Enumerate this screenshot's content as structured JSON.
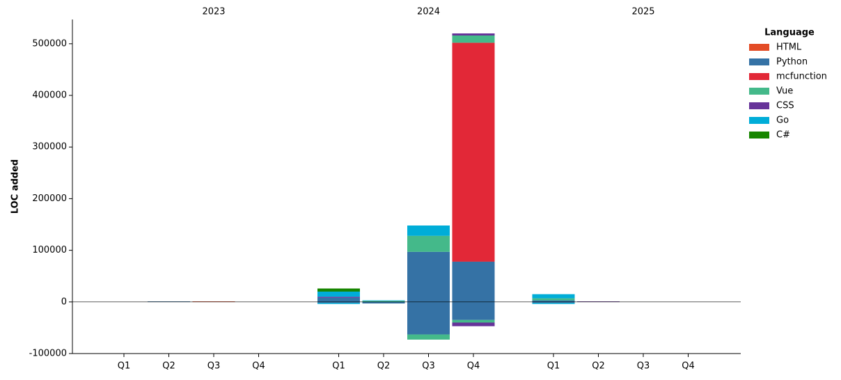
{
  "chart_data": {
    "type": "bar",
    "stacked": true,
    "y_label": "LOC added",
    "groups": [
      "2023",
      "2024",
      "2025"
    ],
    "categories": [
      "Q1",
      "Q2",
      "Q3",
      "Q4",
      "Q1",
      "Q2",
      "Q3",
      "Q4",
      "Q1",
      "Q2",
      "Q3",
      "Q4"
    ],
    "legend_title": "Language",
    "legend": "upper right",
    "series": [
      {
        "name": "HTML",
        "color": "#e34c26",
        "values": [
          0,
          0,
          1000,
          0,
          0,
          0,
          0,
          0,
          0,
          0,
          0,
          0
        ]
      },
      {
        "name": "Python",
        "color": "#3572a5",
        "values": [
          0,
          1000,
          0,
          0,
          8000,
          -3000,
          97000,
          78000,
          3000,
          0,
          0,
          0
        ]
      },
      {
        "name": "mcfunction",
        "color": "#e22837",
        "values": [
          0,
          0,
          0,
          0,
          0,
          0,
          0,
          424000,
          0,
          0,
          0,
          0
        ]
      },
      {
        "name": "Vue",
        "color": "#44b98a",
        "values": [
          0,
          0,
          0,
          0,
          0,
          2000,
          31000,
          14000,
          4000,
          0,
          0,
          0
        ]
      },
      {
        "name": "CSS",
        "color": "#663399",
        "values": [
          0,
          0,
          0,
          0,
          2000,
          0,
          0,
          4000,
          0,
          1000,
          0,
          0
        ]
      },
      {
        "name": "Go",
        "color": "#00add8",
        "values": [
          0,
          0,
          0,
          0,
          10000,
          1000,
          20000,
          0,
          8000,
          0,
          0,
          0
        ]
      },
      {
        "name": "C#",
        "color": "#178600",
        "values": [
          0,
          0,
          0,
          0,
          6000,
          0,
          0,
          0,
          0,
          0,
          0,
          0
        ]
      },
      {
        "name": "Python",
        "color": "#3572a5",
        "values": [
          0,
          0,
          0,
          0,
          -2000,
          0,
          -63000,
          -35000,
          -2000,
          0,
          0,
          0
        ],
        "legend": false
      },
      {
        "name": "Vue",
        "color": "#44b98a",
        "values": [
          0,
          0,
          0,
          0,
          0,
          0,
          -10000,
          -5000,
          0,
          0,
          0,
          0
        ],
        "legend": false
      },
      {
        "name": "CSS",
        "color": "#663399",
        "values": [
          0,
          0,
          0,
          0,
          0,
          0,
          0,
          -7000,
          0,
          0,
          0,
          0
        ],
        "legend": false
      },
      {
        "name": "Go",
        "color": "#00add8",
        "values": [
          0,
          0,
          0,
          0,
          -2000,
          0,
          0,
          0,
          -2000,
          0,
          0,
          0
        ],
        "legend": false
      }
    ],
    "ylim": [
      -100000,
      547000
    ],
    "yticks": [
      -100000,
      0,
      100000,
      200000,
      300000,
      400000,
      500000
    ],
    "grid": false
  }
}
